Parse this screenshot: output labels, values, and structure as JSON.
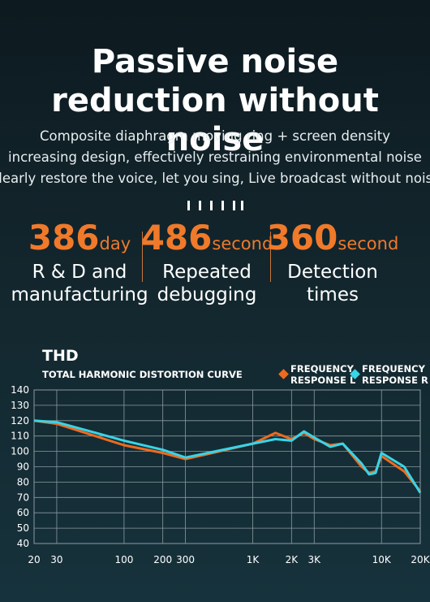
{
  "header": {
    "title": "Passive noise reduction without noise",
    "description": [
      "Composite diaphragm moving ring + screen density increasing design, effectively restraining environmental noise",
      "Clearly restore the voice, let you sing, Live broadcast without noise"
    ]
  },
  "stats": [
    {
      "value": 386,
      "unit": "day",
      "label": "R & D and manufacturing"
    },
    {
      "value": 486,
      "unit": "second",
      "label": "Repeated debugging"
    },
    {
      "value": 360,
      "unit": "second",
      "label": "Detection times"
    }
  ],
  "chart_data": {
    "type": "line",
    "title": "THD",
    "subtitle": "TOTAL HARMONIC DISTORTION CURVE",
    "x": [
      20,
      30,
      100,
      200,
      300,
      1000,
      1500,
      2000,
      2500,
      3000,
      4000,
      5000,
      7000,
      8000,
      9000,
      10000,
      15000,
      20000
    ],
    "series": [
      {
        "name": "FREQUENCY RESPONSE L",
        "color": "#f06a1e",
        "values": [
          120,
          118,
          104,
          99,
          95,
          105,
          112,
          108,
          112,
          108,
          104,
          105,
          90,
          86,
          87,
          97,
          87,
          74
        ]
      },
      {
        "name": "FREQUENCY RESPONSE R",
        "color": "#39d4e6",
        "values": [
          120,
          119,
          107,
          101,
          96,
          105,
          108,
          107,
          113,
          109,
          103,
          105,
          92,
          85,
          86,
          99,
          90,
          73
        ]
      }
    ],
    "xlim": [
      20,
      20000
    ],
    "xscale": "log",
    "xticks": [
      20,
      30,
      100,
      200,
      300,
      {
        "value": 1000,
        "label": "1K"
      },
      {
        "value": 2000,
        "label": "2K"
      },
      {
        "value": 3000,
        "label": "3K"
      },
      {
        "value": 10000,
        "label": "10K"
      },
      {
        "value": 20000,
        "label": "20K"
      }
    ],
    "ylim": [
      40,
      140
    ],
    "yticks": [
      40,
      50,
      60,
      70,
      80,
      90,
      100,
      110,
      120,
      130,
      140
    ],
    "grid": true,
    "legend": "top-right"
  }
}
